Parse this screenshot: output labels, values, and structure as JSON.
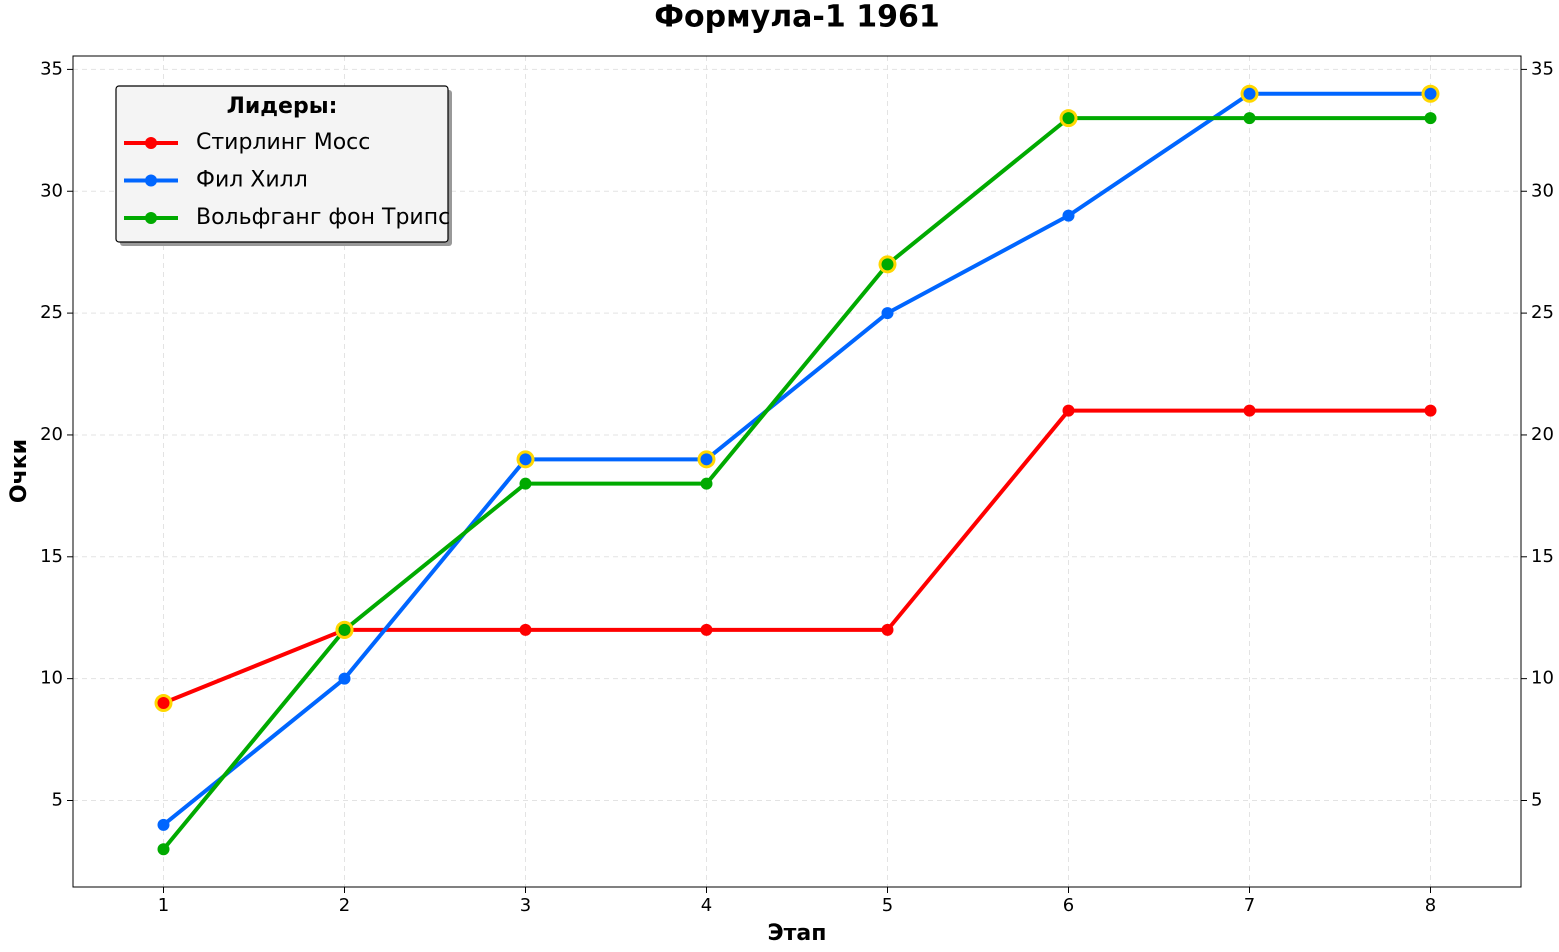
{
  "chart_data": {
    "type": "line",
    "title": "Формула-1 1961",
    "x_label": "Этап",
    "y_label": "Очки",
    "x": [
      1,
      2,
      3,
      4,
      5,
      6,
      7,
      8
    ],
    "series": [
      {
        "name": "Стирлинг Мосс",
        "color": "#ff0000",
        "values": [
          9,
          12,
          12,
          12,
          12,
          21,
          21,
          21
        ],
        "highlight": [
          true,
          true,
          false,
          false,
          false,
          false,
          false,
          false
        ]
      },
      {
        "name": "Фил Хилл",
        "color": "#0066ff",
        "values": [
          4,
          10,
          19,
          19,
          25,
          29,
          34,
          34
        ],
        "highlight": [
          false,
          false,
          true,
          true,
          false,
          false,
          true,
          true
        ]
      },
      {
        "name": "Вольфганг фон Трипс",
        "color": "#00aa00",
        "values": [
          3,
          12,
          18,
          18,
          27,
          33,
          33,
          33
        ],
        "highlight": [
          false,
          true,
          false,
          false,
          true,
          true,
          false,
          false
        ]
      }
    ],
    "highlight_color": "#ffd700",
    "legend_title": "Лидеры:",
    "legend": "upper left",
    "xlim": [
      0.5,
      8.5
    ],
    "xticks": [
      1,
      2,
      3,
      4,
      5,
      6,
      7,
      8
    ],
    "ylim": [
      1.45,
      35.55
    ],
    "yticks": [
      5,
      10,
      15,
      20,
      25,
      30,
      35
    ],
    "y2lim": [
      1.45,
      35.55
    ],
    "y2ticks": [
      5,
      10,
      15,
      20,
      25,
      30,
      35
    ],
    "grid": true
  }
}
